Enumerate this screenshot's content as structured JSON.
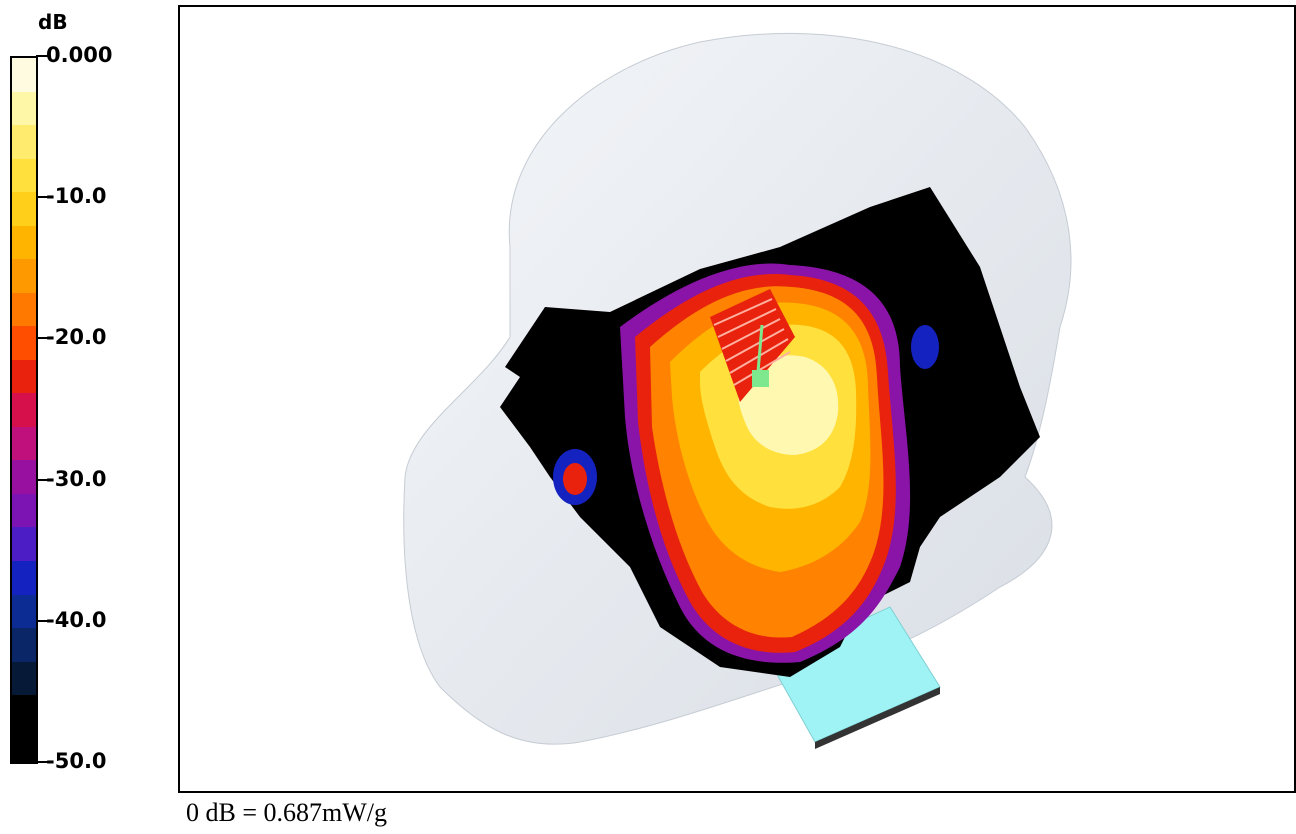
{
  "legend": {
    "unit": "dB",
    "ticks": [
      {
        "label": "0.000",
        "value": 0
      },
      {
        "label": "-10.0",
        "value": -10
      },
      {
        "label": "-20.0",
        "value": -20
      },
      {
        "label": "-30.0",
        "value": -30
      },
      {
        "label": "-40.0",
        "value": -40
      },
      {
        "label": "-50.0",
        "value": -50
      }
    ],
    "range": [
      0,
      -50
    ],
    "color_steps": [
      "#fffbe0",
      "#fff7a8",
      "#ffec6e",
      "#ffe03c",
      "#ffcf1a",
      "#ffb400",
      "#ff9900",
      "#ff7800",
      "#ff4e00",
      "#e8220c",
      "#d5104a",
      "#c0107c",
      "#9810a0",
      "#7c14b4",
      "#4c1cc4",
      "#1422c0",
      "#0c2c94",
      "#0a2666",
      "#061a38",
      "#000000",
      "#000000"
    ]
  },
  "caption": "0 dB = 0.687mW/g",
  "colors": {
    "head": "#e8ecf1",
    "phone": "#9ff3f5",
    "black_region": "#000000",
    "hot_core": "#fff8b0",
    "probe_marker": "#7ee88e"
  }
}
